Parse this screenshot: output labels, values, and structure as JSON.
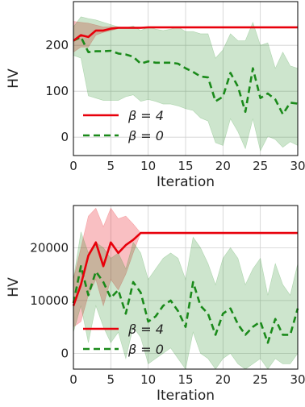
{
  "chart_data": [
    {
      "type": "line",
      "xlabel": "Iteration",
      "ylabel": "HV",
      "xlim": [
        0,
        30
      ],
      "ylim": [
        -40,
        295
      ],
      "xticks": [
        0,
        5,
        10,
        15,
        20,
        25,
        30
      ],
      "yticks": [
        0,
        100,
        200
      ],
      "legend_placement": "lower-left",
      "grid": true,
      "x": [
        0,
        1,
        2,
        3,
        4,
        5,
        6,
        7,
        8,
        9,
        10,
        11,
        12,
        13,
        14,
        15,
        16,
        17,
        18,
        19,
        20,
        21,
        22,
        23,
        24,
        25,
        26,
        27,
        28,
        29,
        30
      ],
      "series": [
        {
          "name": "β = 4",
          "color": "#e8000b",
          "style": "solid",
          "values": [
            210,
            222,
            218,
            232,
            232,
            236,
            238,
            238,
            238,
            238,
            239,
            239,
            239,
            239,
            239,
            239,
            239,
            239,
            239,
            239,
            239,
            239,
            239,
            239,
            239,
            239,
            239,
            239,
            239,
            239,
            239
          ],
          "band_upper": [
            252,
            250,
            248,
            244,
            240,
            240,
            240,
            240,
            240,
            240,
            240,
            240,
            240,
            240,
            240,
            240,
            240,
            240,
            240,
            240,
            240,
            240,
            240,
            240,
            240,
            240,
            240,
            240,
            240,
            240,
            240
          ],
          "band_lower": [
            185,
            196,
            196,
            222,
            228,
            232,
            236,
            236,
            236,
            236,
            238,
            238,
            238,
            238,
            238,
            238,
            238,
            238,
            238,
            238,
            238,
            238,
            238,
            238,
            238,
            238,
            238,
            238,
            238,
            238,
            238
          ]
        },
        {
          "name": "β = 0",
          "color": "#1a8a1a",
          "style": "dashed",
          "values": [
            210,
            218,
            185,
            187,
            187,
            188,
            182,
            180,
            175,
            160,
            165,
            162,
            162,
            162,
            160,
            150,
            142,
            132,
            130,
            78,
            88,
            140,
            110,
            55,
            150,
            85,
            95,
            82,
            50,
            75,
            73
          ],
          "band_upper": [
            240,
            262,
            258,
            255,
            250,
            245,
            240,
            238,
            242,
            232,
            240,
            235,
            232,
            235,
            240,
            230,
            230,
            225,
            225,
            172,
            190,
            225,
            210,
            210,
            250,
            200,
            205,
            150,
            185,
            155,
            150
          ],
          "band_lower": [
            178,
            172,
            90,
            85,
            80,
            80,
            80,
            88,
            92,
            78,
            82,
            78,
            72,
            72,
            68,
            62,
            58,
            42,
            35,
            -12,
            -18,
            40,
            12,
            -25,
            40,
            -30,
            2,
            -5,
            -22,
            -10,
            -18
          ]
        }
      ]
    },
    {
      "type": "line",
      "xlabel": "Iteration",
      "ylabel": "HV",
      "xlim": [
        0,
        30
      ],
      "ylim": [
        -3000,
        28000
      ],
      "xticks": [
        0,
        5,
        10,
        15,
        20,
        25,
        30
      ],
      "yticks": [
        0,
        10000,
        20000
      ],
      "legend_placement": "lower-left",
      "grid": true,
      "x": [
        0,
        1,
        2,
        3,
        4,
        5,
        6,
        7,
        8,
        9,
        10,
        11,
        12,
        13,
        14,
        15,
        16,
        17,
        18,
        19,
        20,
        21,
        22,
        23,
        24,
        25,
        26,
        27,
        28,
        29,
        30
      ],
      "series": [
        {
          "name": "β = 4",
          "color": "#e8000b",
          "style": "solid",
          "values": [
            9000,
            13000,
            18500,
            21000,
            16500,
            21000,
            19000,
            20500,
            21500,
            22800,
            22800,
            22800,
            22800,
            22800,
            22800,
            22800,
            22800,
            22800,
            22800,
            22800,
            22800,
            22800,
            22800,
            22800,
            22800,
            22800,
            22800,
            22800,
            22800,
            22800,
            22800
          ],
          "band_upper": [
            14000,
            20000,
            26000,
            27500,
            24000,
            27500,
            25500,
            26000,
            24500,
            22800,
            22800,
            22800,
            22800,
            22800,
            22800,
            22800,
            22800,
            22800,
            22800,
            22800,
            22800,
            22800,
            22800,
            22800,
            22800,
            22800,
            22800,
            22800,
            22800,
            22800,
            22800
          ],
          "band_lower": [
            5000,
            6000,
            11000,
            14000,
            9000,
            14000,
            12000,
            15000,
            19000,
            22800,
            22800,
            22800,
            22800,
            22800,
            22800,
            22800,
            22800,
            22800,
            22800,
            22800,
            22800,
            22800,
            22800,
            22800,
            22800,
            22800,
            22800,
            22800,
            22800,
            22800,
            22800
          ]
        },
        {
          "name": "β = 0",
          "color": "#1a8a1a",
          "style": "dashed",
          "values": [
            9500,
            16500,
            11000,
            15500,
            13500,
            10500,
            12000,
            7500,
            13500,
            11500,
            6000,
            7000,
            9000,
            10000,
            8000,
            5000,
            13500,
            9000,
            7500,
            3500,
            7500,
            8500,
            5500,
            3500,
            5000,
            6000,
            2000,
            6500,
            3500,
            3500,
            8500
          ],
          "band_upper": [
            14000,
            23000,
            19000,
            21000,
            20000,
            18000,
            19000,
            16000,
            21000,
            19000,
            14000,
            16000,
            18000,
            19000,
            18000,
            14000,
            22000,
            20000,
            17000,
            13000,
            18000,
            20000,
            18000,
            13000,
            16000,
            18000,
            11000,
            17000,
            13000,
            11000,
            17000
          ],
          "band_lower": [
            4000,
            9000,
            2000,
            9000,
            5000,
            2000,
            4000,
            -1000,
            5000,
            3000,
            -2000,
            -1000,
            0,
            1000,
            -1000,
            -3000,
            4000,
            0,
            -1000,
            -3000,
            -1000,
            0,
            -2000,
            -3000,
            -2000,
            -1000,
            -3000,
            -1000,
            -2000,
            -2000,
            0
          ]
        }
      ]
    }
  ]
}
